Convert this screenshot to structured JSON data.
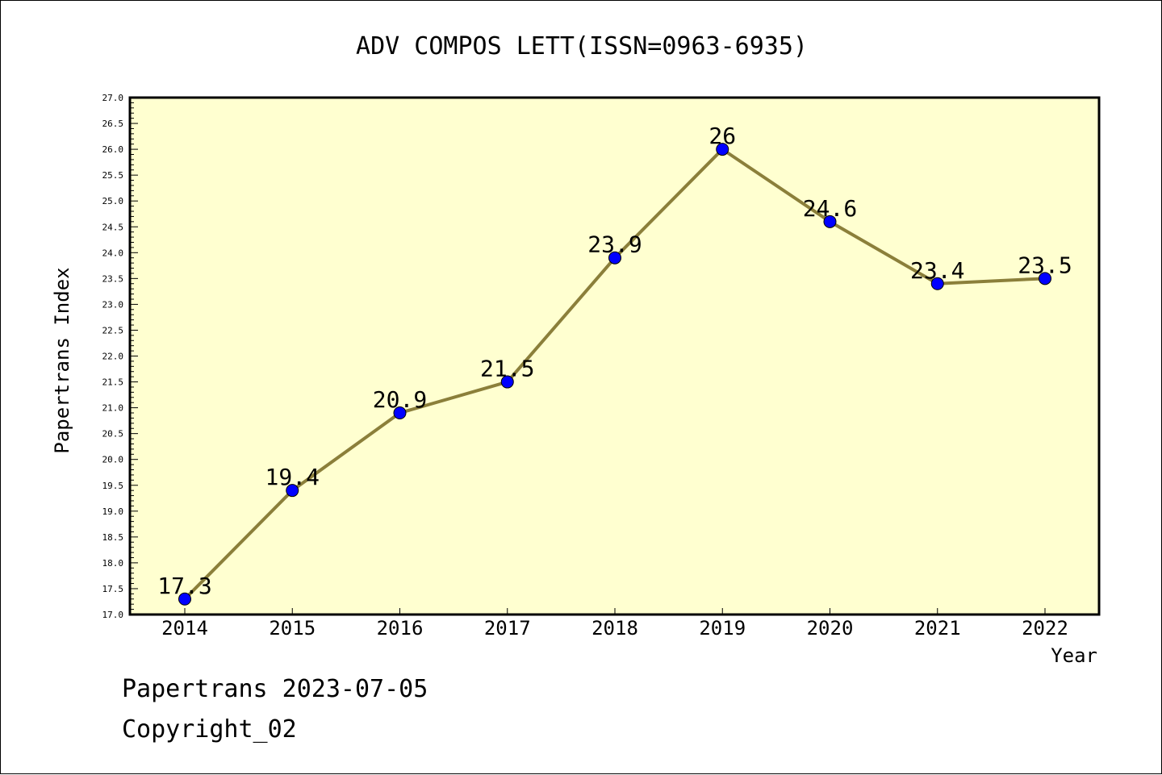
{
  "chart_data": {
    "type": "line",
    "title": "ADV COMPOS LETT(ISSN=0963-6935)",
    "xlabel": "Year",
    "ylabel": "Papertrans Index",
    "categories": [
      "2014",
      "2015",
      "2016",
      "2017",
      "2018",
      "2019",
      "2020",
      "2021",
      "2022"
    ],
    "series": [
      {
        "values": [
          17.3,
          19.4,
          20.9,
          21.5,
          23.9,
          26,
          24.6,
          23.4,
          23.5
        ],
        "data_labels": [
          "17.3",
          "19.4",
          "20.9",
          "21.5",
          "23.9",
          "26",
          "24.6",
          "23.4",
          "23.5"
        ]
      }
    ],
    "ylim": [
      17.0,
      27.0
    ],
    "yticks": [
      "17.0",
      "17.5",
      "18.0",
      "18.5",
      "19.0",
      "19.5",
      "20.0",
      "20.5",
      "21.0",
      "21.5",
      "22.0",
      "22.5",
      "23.0",
      "23.5",
      "24.0",
      "24.5",
      "25.0",
      "25.5",
      "26.0",
      "26.5",
      "27.0"
    ],
    "grid": false,
    "legend": "none",
    "colors": {
      "plot_background": "#ffffd0",
      "line": "#8b7f3a",
      "marker": "#0000ff"
    }
  },
  "footer": {
    "stamp": "Papertrans 2023-07-05",
    "copyright": "Copyright_02"
  }
}
